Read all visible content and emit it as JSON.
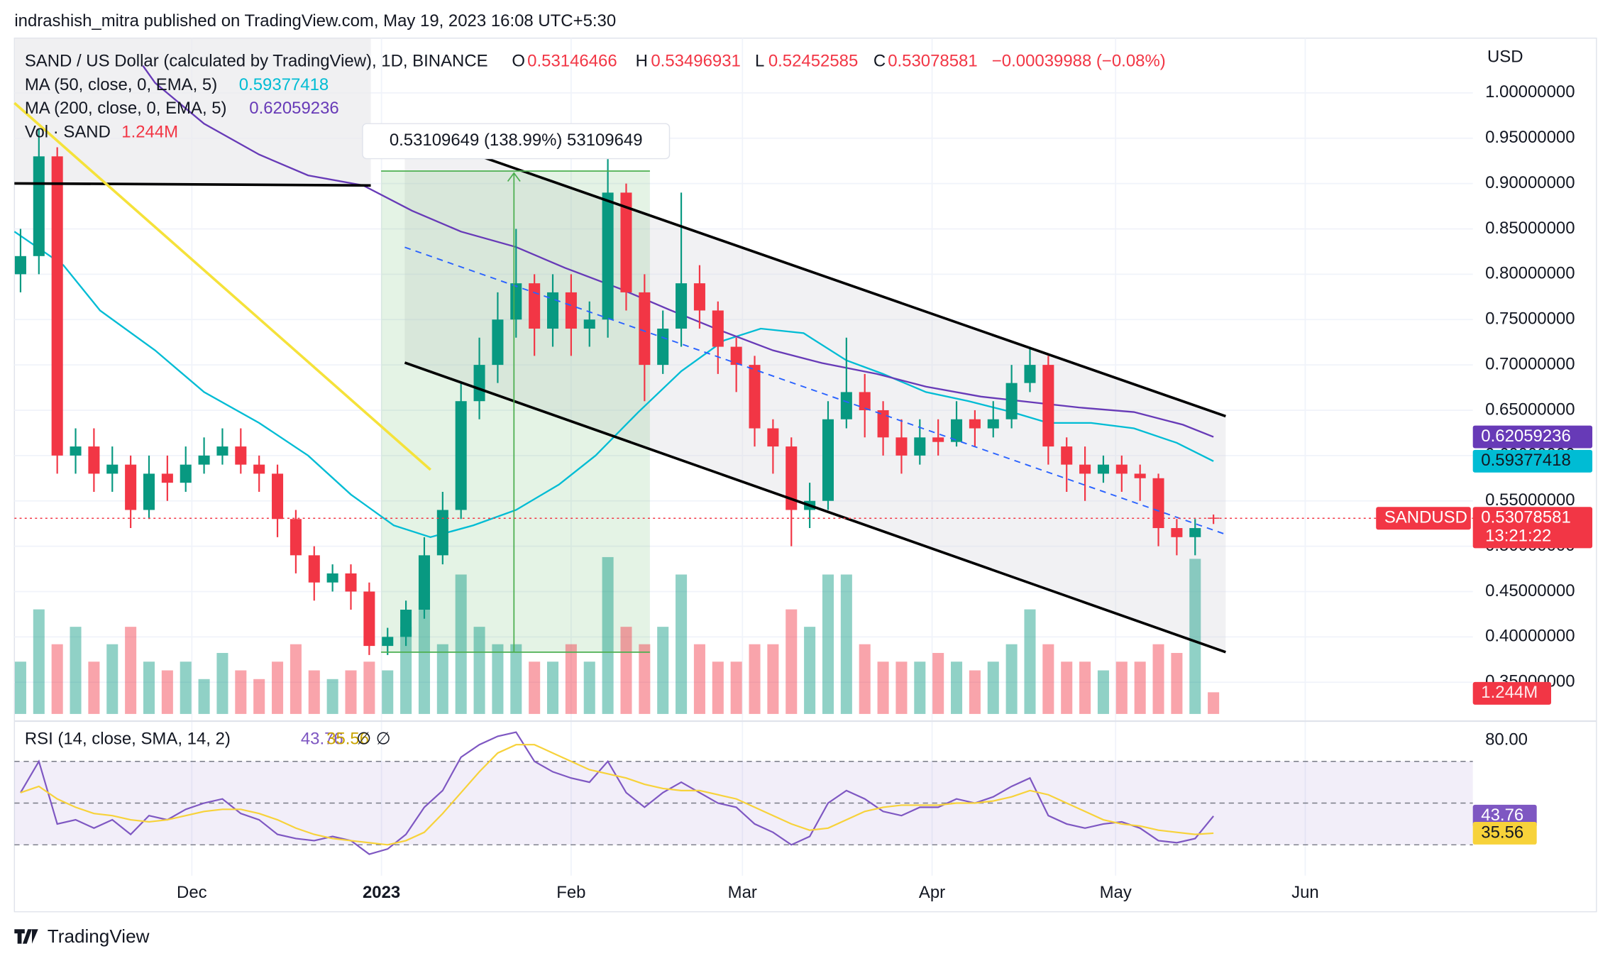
{
  "header": {
    "attribution": "indrashish_mitra published on TradingView.com, May 19, 2023 16:08 UTC+5:30"
  },
  "footer": {
    "brand": "TradingView"
  },
  "chart_data": {
    "type": "candlestick",
    "title": "SAND / US Dollar (calculated by TradingView), 1D, BINANCE",
    "ohlc_labels": [
      "O",
      "H",
      "L",
      "C"
    ],
    "change": "−0.00039988 (−0.08%)",
    "x": [
      1,
      4,
      7,
      10,
      13,
      16,
      19,
      22,
      25,
      28,
      31,
      34,
      37,
      40,
      43,
      46,
      49,
      52,
      55,
      58,
      61,
      64,
      67,
      70,
      73,
      76,
      79,
      82,
      85,
      88,
      91,
      94,
      97,
      100,
      103,
      106,
      109,
      112,
      115,
      118,
      121,
      124,
      127,
      130,
      133,
      136,
      139,
      142,
      145,
      148,
      151,
      154,
      157,
      160,
      163,
      166,
      169,
      172,
      175,
      178,
      181,
      184,
      187,
      190,
      193,
      196
    ],
    "open": [
      0.8,
      0.82,
      0.93,
      0.6,
      0.61,
      0.58,
      0.59,
      0.54,
      0.58,
      0.57,
      0.59,
      0.6,
      0.61,
      0.59,
      0.58,
      0.53,
      0.49,
      0.46,
      0.47,
      0.45,
      0.39,
      0.4,
      0.43,
      0.49,
      0.54,
      0.66,
      0.7,
      0.75,
      0.79,
      0.74,
      0.78,
      0.74,
      0.75,
      0.89,
      0.78,
      0.7,
      0.74,
      0.79,
      0.76,
      0.72,
      0.7,
      0.63,
      0.61,
      0.54,
      0.55,
      0.64,
      0.67,
      0.65,
      0.62,
      0.6,
      0.62,
      0.615,
      0.64,
      0.63,
      0.64,
      0.68,
      0.7,
      0.61,
      0.59,
      0.58,
      0.59,
      0.58,
      0.575,
      0.52,
      0.51,
      0.53146466
    ],
    "high": [
      0.85,
      0.96,
      0.94,
      0.63,
      0.63,
      0.61,
      0.6,
      0.6,
      0.6,
      0.61,
      0.62,
      0.63,
      0.63,
      0.6,
      0.59,
      0.54,
      0.5,
      0.48,
      0.48,
      0.46,
      0.41,
      0.44,
      0.51,
      0.56,
      0.68,
      0.73,
      0.78,
      0.85,
      0.8,
      0.8,
      0.8,
      0.77,
      0.94,
      0.9,
      0.8,
      0.76,
      0.89,
      0.81,
      0.77,
      0.73,
      0.71,
      0.64,
      0.62,
      0.57,
      0.66,
      0.73,
      0.69,
      0.66,
      0.64,
      0.64,
      0.64,
      0.66,
      0.65,
      0.66,
      0.7,
      0.72,
      0.71,
      0.62,
      0.61,
      0.6,
      0.6,
      0.59,
      0.58,
      0.53,
      0.53,
      0.53496931
    ],
    "low": [
      0.78,
      0.8,
      0.58,
      0.58,
      0.56,
      0.56,
      0.52,
      0.53,
      0.55,
      0.56,
      0.58,
      0.59,
      0.58,
      0.56,
      0.51,
      0.47,
      0.44,
      0.45,
      0.43,
      0.38,
      0.38,
      0.39,
      0.42,
      0.48,
      0.53,
      0.64,
      0.68,
      0.73,
      0.71,
      0.72,
      0.71,
      0.72,
      0.73,
      0.76,
      0.66,
      0.69,
      0.72,
      0.74,
      0.69,
      0.67,
      0.61,
      0.58,
      0.5,
      0.52,
      0.54,
      0.63,
      0.62,
      0.6,
      0.58,
      0.59,
      0.6,
      0.61,
      0.61,
      0.62,
      0.63,
      0.67,
      0.59,
      0.56,
      0.55,
      0.57,
      0.56,
      0.55,
      0.5,
      0.49,
      0.49,
      0.52452585
    ],
    "close": [
      0.82,
      0.93,
      0.6,
      0.61,
      0.58,
      0.59,
      0.54,
      0.58,
      0.57,
      0.59,
      0.6,
      0.61,
      0.59,
      0.58,
      0.53,
      0.49,
      0.46,
      0.47,
      0.45,
      0.39,
      0.4,
      0.43,
      0.49,
      0.54,
      0.66,
      0.7,
      0.75,
      0.79,
      0.74,
      0.78,
      0.74,
      0.75,
      0.89,
      0.78,
      0.7,
      0.74,
      0.79,
      0.76,
      0.72,
      0.7,
      0.63,
      0.61,
      0.54,
      0.55,
      0.64,
      0.67,
      0.65,
      0.62,
      0.6,
      0.62,
      0.615,
      0.64,
      0.63,
      0.64,
      0.68,
      0.7,
      0.61,
      0.59,
      0.58,
      0.59,
      0.58,
      0.575,
      0.52,
      0.51,
      0.52,
      0.53078581
    ],
    "up_color": "#089981",
    "down_color": "#f23645",
    "xlim": [
      0,
      238.4
    ],
    "xticks": [
      {
        "value": 29,
        "label": "Dec"
      },
      {
        "value": 60,
        "label": "2023"
      },
      {
        "value": 91,
        "label": "Feb"
      },
      {
        "value": 119,
        "label": "Mar"
      },
      {
        "value": 150,
        "label": "Apr"
      },
      {
        "value": 180,
        "label": "May"
      },
      {
        "value": 211,
        "label": "Jun"
      }
    ],
    "ylim": [
      0.315,
      1.057
    ],
    "y_unit": "USD",
    "yticks": [
      {
        "value": 1.0,
        "label": "1.00000000"
      },
      {
        "value": 0.95,
        "label": "0.95000000"
      },
      {
        "value": 0.9,
        "label": "0.90000000"
      },
      {
        "value": 0.85,
        "label": "0.85000000"
      },
      {
        "value": 0.8,
        "label": "0.80000000"
      },
      {
        "value": 0.75,
        "label": "0.75000000"
      },
      {
        "value": 0.7,
        "label": "0.70000000"
      },
      {
        "value": 0.65,
        "label": "0.65000000"
      },
      {
        "value": 0.6,
        "label": "0.60000000"
      },
      {
        "value": 0.55,
        "label": "0.55000000"
      },
      {
        "value": 0.5,
        "label": "0.50000000"
      },
      {
        "value": 0.45,
        "label": "0.45000000"
      },
      {
        "value": 0.4,
        "label": "0.40000000"
      },
      {
        "value": 0.35,
        "label": "0.35000000"
      }
    ],
    "grid": true,
    "series": [
      {
        "name": "MA (50, close, 0, EMA, 5)",
        "color": "#00bcd4",
        "x": [
          0,
          8,
          14,
          23,
          31,
          40,
          48,
          55,
          62,
          68,
          75,
          82,
          89,
          95,
          102,
          109,
          116,
          122,
          129,
          136,
          142,
          149,
          156,
          163,
          169,
          176,
          183,
          190,
          196
        ],
        "values": [
          0.847,
          0.81,
          0.76,
          0.716,
          0.67,
          0.636,
          0.6,
          0.557,
          0.523,
          0.51,
          0.523,
          0.54,
          0.568,
          0.6,
          0.648,
          0.693,
          0.727,
          0.74,
          0.735,
          0.705,
          0.69,
          0.67,
          0.66,
          0.648,
          0.636,
          0.636,
          0.63,
          0.614,
          0.59377418
        ]
      },
      {
        "name": "MA (200, close, 0, EMA, 5)",
        "color": "#673ab7",
        "x": [
          21,
          23,
          31,
          40,
          48,
          57,
          65,
          73,
          82,
          90,
          99,
          107,
          115,
          124,
          132,
          141,
          149,
          158,
          166,
          174,
          183,
          191,
          196
        ],
        "values": [
          1.03,
          1.011,
          0.966,
          0.932,
          0.909,
          0.898,
          0.87,
          0.847,
          0.83,
          0.807,
          0.784,
          0.761,
          0.739,
          0.716,
          0.702,
          0.69,
          0.676,
          0.665,
          0.659,
          0.653,
          0.648,
          0.634,
          0.62059236
        ]
      }
    ],
    "volume": {
      "name": "Vol · SAND",
      "label": "1.244M",
      "ylim": [
        0,
        38.6
      ],
      "values": [
        3,
        6,
        4,
        5,
        3,
        4,
        5,
        3,
        2.5,
        3,
        2,
        3.5,
        2.5,
        2,
        3,
        4,
        2.5,
        2,
        2.5,
        3,
        2.5,
        5,
        7,
        4,
        8,
        5,
        4,
        4,
        3,
        3,
        4,
        3,
        9,
        5,
        4,
        5,
        8,
        4,
        3,
        3,
        4,
        4,
        6,
        5,
        8,
        8,
        4,
        3,
        3,
        3,
        3.5,
        3,
        2.5,
        3,
        4,
        6,
        4,
        3,
        3,
        2.5,
        3,
        3,
        4,
        3.5,
        8.9,
        1.244
      ]
    },
    "symbol_label": "SANDUSD",
    "countdown": "13:21:22",
    "measure_label": "0.53109649 (138.99%) 53109649",
    "indicator": {
      "type": "line",
      "name": "RSI (14, close, SMA, 14, 2)",
      "extra": "∅ ∅",
      "ylim": [
        15.2,
        86.8
      ],
      "yticks": [
        {
          "value": 80,
          "label": "80.00"
        }
      ],
      "levels": [
        70,
        50,
        30
      ],
      "band_color": "#7e57c2",
      "series": [
        {
          "name": "RSI",
          "color": "#7e57c2",
          "values": [
            55,
            70,
            40,
            42,
            38,
            42,
            35,
            44,
            42,
            47,
            50,
            52,
            45,
            42,
            35,
            33,
            32,
            34,
            32,
            25.5,
            28,
            35,
            48,
            56,
            72,
            78,
            82,
            84,
            70,
            65,
            62,
            60,
            70,
            55,
            48,
            55,
            60,
            55,
            50,
            48,
            40,
            36,
            30,
            34,
            50,
            56,
            52,
            46,
            44,
            48,
            48,
            52,
            50,
            53,
            58,
            62,
            44,
            40,
            38,
            40,
            41,
            38,
            32,
            31,
            33,
            43.76
          ]
        },
        {
          "name": "SMA",
          "color": "#f7d23a",
          "values": [
            55,
            58,
            52,
            48,
            45,
            44,
            42,
            41,
            42,
            44,
            46,
            47,
            47,
            45,
            42,
            38,
            35,
            33,
            32,
            31,
            30,
            32,
            36,
            45,
            55,
            65,
            74,
            78,
            78,
            74,
            70,
            66,
            64,
            62,
            59,
            57,
            56,
            56,
            54,
            52,
            48,
            44,
            40,
            37,
            38,
            42,
            46,
            48,
            49,
            49,
            49,
            50,
            50,
            51,
            53,
            56,
            54,
            50,
            46,
            42,
            40,
            39,
            37,
            36,
            35,
            35.56
          ]
        }
      ]
    }
  }
}
